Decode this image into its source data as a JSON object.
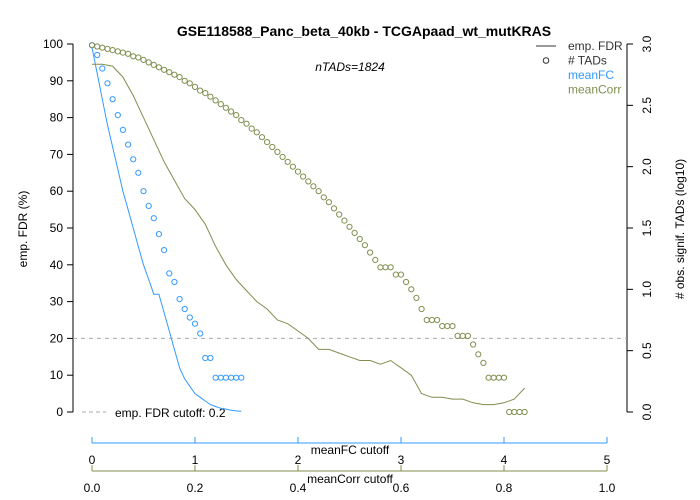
{
  "chart_data": {
    "type": "line",
    "title": "GSE118588_Panc_beta_40kb - TCGApaad_wt_mutKRAS",
    "annotation": "nTADs=1824",
    "left_axis": {
      "label": "emp. FDR (%)",
      "range": [
        0,
        100
      ],
      "ticks": [
        "0",
        "10",
        "20",
        "30",
        "40",
        "50",
        "60",
        "70",
        "80",
        "90",
        "100"
      ]
    },
    "right_axis": {
      "label": "# obs. signif. TADs (log10)",
      "range": [
        0,
        3.0
      ],
      "ticks": [
        "0.0",
        "0.5",
        "1.0",
        "1.5",
        "2.0",
        "2.5",
        "3.0"
      ]
    },
    "x_axes": [
      {
        "label": "meanFC cutoff",
        "range": [
          0,
          5
        ],
        "ticks": [
          "0",
          "1",
          "2",
          "3",
          "4",
          "5"
        ],
        "color": "#3399ff"
      },
      {
        "label": "meanCorr cutoff",
        "range": [
          0,
          1.0
        ],
        "ticks": [
          "0.0",
          "0.2",
          "0.4",
          "0.6",
          "0.8",
          "1.0"
        ],
        "color": "#7f8f4f"
      }
    ],
    "fdr_cutoff": {
      "value": 20,
      "label": "emp. FDR cutoff: 0.2"
    },
    "legend": {
      "position": "top-right",
      "items": [
        {
          "label": "emp. FDR",
          "symbol": "line",
          "color": "#333333"
        },
        {
          "label": "# TADs",
          "symbol": "circle",
          "color": "#333333"
        },
        {
          "label": "meanFC",
          "symbol": "none",
          "color": "#3399ff"
        },
        {
          "label": "meanCorr",
          "symbol": "none",
          "color": "#7f8f4f"
        }
      ]
    },
    "colors": {
      "meanFC": "#3399ff",
      "meanCorr": "#7f8f4f",
      "cutoff_line": "#aaaaaa"
    },
    "series": [
      {
        "name": "meanFC",
        "fdr": {
          "x": [
            0,
            0.05,
            0.1,
            0.15,
            0.2,
            0.25,
            0.3,
            0.35,
            0.4,
            0.45,
            0.5,
            0.55,
            0.6,
            0.65,
            0.7,
            0.75,
            0.8,
            0.85,
            0.9,
            0.95,
            1.0,
            1.05,
            1.1,
            1.15,
            1.2,
            1.25,
            1.3,
            1.35,
            1.4,
            1.45
          ],
          "y": [
            99,
            92,
            85,
            78,
            72,
            66,
            60,
            55,
            50,
            45,
            40,
            36,
            32,
            32,
            27,
            22,
            17,
            12,
            9,
            7,
            5,
            4,
            3,
            2,
            1.5,
            1,
            0.8,
            0.5,
            0.3,
            0.2
          ]
        },
        "ntads": {
          "x": [
            0,
            0.05,
            0.1,
            0.15,
            0.2,
            0.25,
            0.3,
            0.35,
            0.4,
            0.45,
            0.5,
            0.55,
            0.6,
            0.65,
            0.7,
            0.75,
            0.8,
            0.85,
            0.9,
            0.95,
            1.0,
            1.05,
            1.1,
            1.15,
            1.2,
            1.25,
            1.3,
            1.35,
            1.4,
            1.45
          ],
          "y": [
            2.99,
            2.91,
            2.8,
            2.68,
            2.55,
            2.42,
            2.3,
            2.18,
            2.06,
            1.95,
            1.8,
            1.68,
            1.58,
            1.45,
            1.32,
            1.13,
            1.06,
            0.92,
            0.84,
            0.77,
            0.72,
            0.64,
            0.44,
            0.44,
            0.28,
            0.28,
            0.28,
            0.28,
            0.28,
            0.28
          ]
        }
      },
      {
        "name": "meanCorr",
        "fdr": {
          "x": [
            0,
            0.02,
            0.04,
            0.06,
            0.08,
            0.1,
            0.12,
            0.14,
            0.16,
            0.18,
            0.2,
            0.22,
            0.24,
            0.26,
            0.28,
            0.3,
            0.32,
            0.34,
            0.36,
            0.38,
            0.4,
            0.42,
            0.44,
            0.46,
            0.48,
            0.5,
            0.52,
            0.54,
            0.56,
            0.58,
            0.6,
            0.62,
            0.64,
            0.66,
            0.68,
            0.7,
            0.72,
            0.74,
            0.76,
            0.78,
            0.8,
            0.82,
            0.84
          ],
          "y": [
            94.5,
            94.5,
            94,
            91,
            86,
            80,
            74,
            68,
            63,
            58,
            55,
            51,
            45,
            40,
            36,
            33,
            30,
            28,
            25,
            24,
            22,
            20,
            17,
            17,
            16,
            15,
            14,
            14,
            13,
            14,
            12,
            10,
            5,
            4,
            4,
            3.5,
            3.5,
            2.5,
            2,
            2,
            2.5,
            3.5,
            6.5
          ]
        },
        "ntads": {
          "x": [
            0,
            0.01,
            0.02,
            0.03,
            0.04,
            0.05,
            0.06,
            0.07,
            0.08,
            0.09,
            0.1,
            0.11,
            0.12,
            0.13,
            0.14,
            0.15,
            0.16,
            0.17,
            0.18,
            0.19,
            0.2,
            0.21,
            0.22,
            0.23,
            0.24,
            0.25,
            0.26,
            0.27,
            0.28,
            0.29,
            0.3,
            0.31,
            0.32,
            0.33,
            0.34,
            0.35,
            0.36,
            0.37,
            0.38,
            0.39,
            0.4,
            0.41,
            0.42,
            0.43,
            0.44,
            0.45,
            0.46,
            0.47,
            0.48,
            0.49,
            0.5,
            0.51,
            0.52,
            0.53,
            0.54,
            0.55,
            0.56,
            0.57,
            0.58,
            0.59,
            0.6,
            0.61,
            0.62,
            0.63,
            0.64,
            0.65,
            0.66,
            0.67,
            0.68,
            0.69,
            0.7,
            0.71,
            0.72,
            0.73,
            0.74,
            0.75,
            0.76,
            0.77,
            0.78,
            0.79,
            0.8,
            0.81,
            0.82,
            0.83,
            0.84
          ],
          "y": [
            2.99,
            2.98,
            2.97,
            2.96,
            2.95,
            2.94,
            2.93,
            2.92,
            2.9,
            2.89,
            2.87,
            2.85,
            2.83,
            2.81,
            2.79,
            2.77,
            2.75,
            2.73,
            2.7,
            2.68,
            2.65,
            2.62,
            2.6,
            2.57,
            2.54,
            2.51,
            2.48,
            2.45,
            2.42,
            2.38,
            2.35,
            2.31,
            2.28,
            2.24,
            2.2,
            2.16,
            2.12,
            2.08,
            2.04,
            2.0,
            1.96,
            1.92,
            1.88,
            1.84,
            1.8,
            1.75,
            1.71,
            1.66,
            1.61,
            1.56,
            1.51,
            1.46,
            1.41,
            1.36,
            1.3,
            1.24,
            1.18,
            1.18,
            1.18,
            1.12,
            1.12,
            1.06,
            1.0,
            0.93,
            0.84,
            0.75,
            0.75,
            0.75,
            0.7,
            0.7,
            0.7,
            0.62,
            0.62,
            0.62,
            0.55,
            0.47,
            0.4,
            0.28,
            0.28,
            0.28,
            0.28,
            0.0,
            0.0,
            0.0,
            0.0
          ]
        }
      }
    ]
  }
}
